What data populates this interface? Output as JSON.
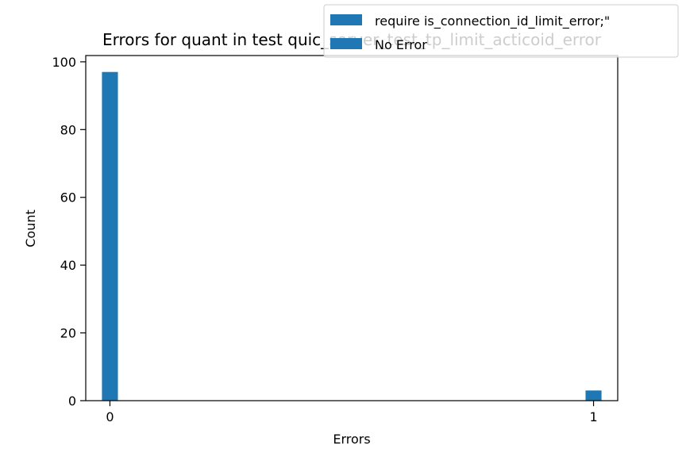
{
  "chart_data": {
    "type": "bar",
    "title": "Errors for quant in test quic_server_test_tp_limit_acticoid_error",
    "xlabel": "Errors",
    "ylabel": "Count",
    "xlim": [
      -0.05,
      1.05
    ],
    "ylim": [
      0,
      101.85
    ],
    "x_ticks": [
      {
        "value": 0,
        "label": "0"
      },
      {
        "value": 1,
        "label": "1"
      }
    ],
    "y_ticks": [
      {
        "value": 0,
        "label": "0"
      },
      {
        "value": 20,
        "label": "20"
      },
      {
        "value": 40,
        "label": "40"
      },
      {
        "value": 60,
        "label": "60"
      },
      {
        "value": 80,
        "label": "80"
      },
      {
        "value": 100,
        "label": "100"
      }
    ],
    "bar_width": 0.033,
    "series": [
      {
        "name": "require is_connection_id_limit_error;\"",
        "color": "#1f77b4",
        "points": [
          {
            "x": 0,
            "y": 97
          }
        ]
      },
      {
        "name": "No Error",
        "color": "#1f77b4",
        "points": [
          {
            "x": 1,
            "y": 3
          }
        ]
      }
    ],
    "legend_position": "top-right",
    "grid": false
  }
}
